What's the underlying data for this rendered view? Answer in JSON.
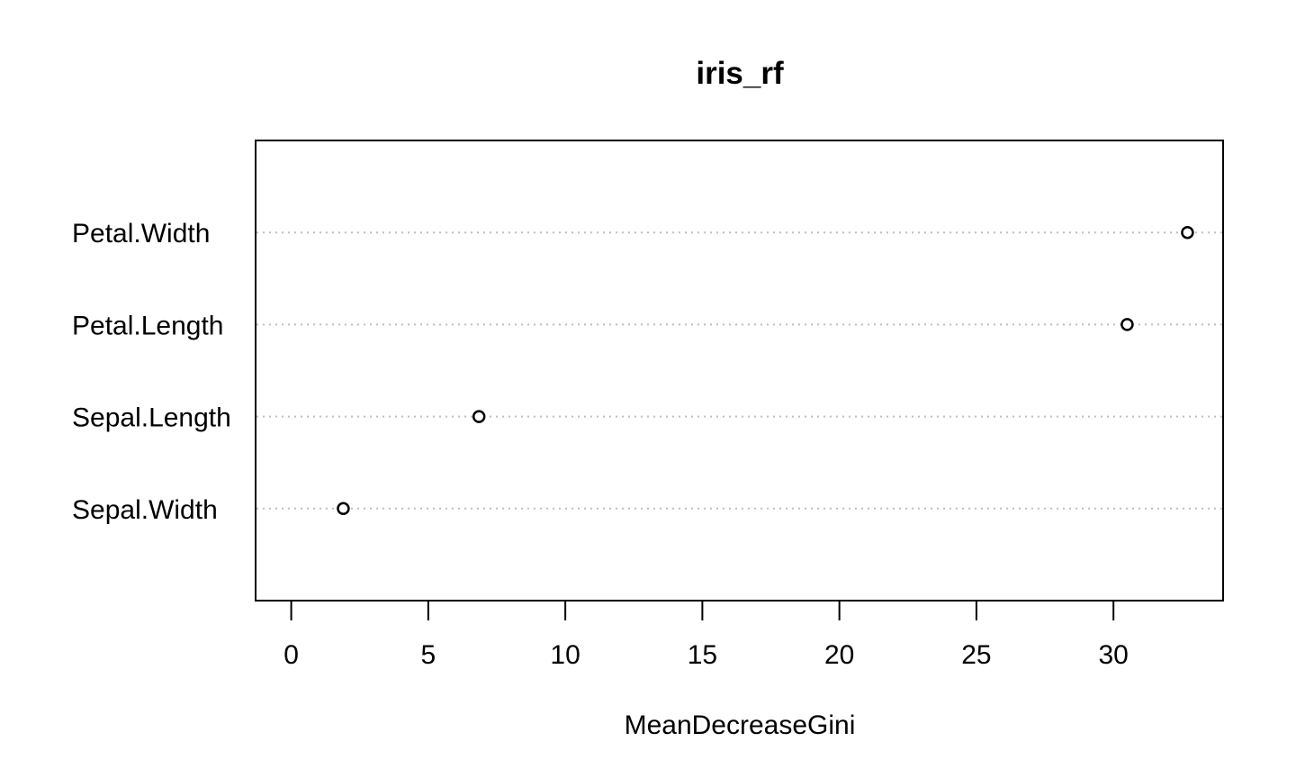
{
  "chart_data": {
    "type": "scatter",
    "title": "iris_rf",
    "xlabel": "MeanDecreaseGini",
    "ylabel": "",
    "categories": [
      "Sepal.Width",
      "Sepal.Length",
      "Petal.Length",
      "Petal.Width"
    ],
    "values": [
      1.9,
      6.85,
      30.5,
      32.7
    ],
    "x_ticks": [
      0,
      5,
      10,
      15,
      20,
      25,
      30
    ],
    "xlim": [
      -1.3,
      34.0
    ],
    "grid": "dotted horizontal guide line per category",
    "legend": "none",
    "marker": "open-circle",
    "colors": {
      "marker": "#000000",
      "gridline": "#bebebe",
      "frame": "#000000",
      "background": "#ffffff"
    }
  }
}
